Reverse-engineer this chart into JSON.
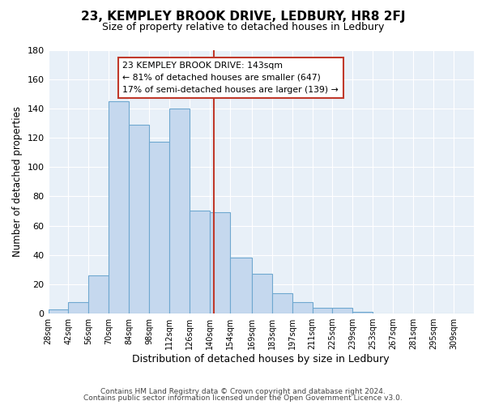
{
  "title": "23, KEMPLEY BROOK DRIVE, LEDBURY, HR8 2FJ",
  "subtitle": "Size of property relative to detached houses in Ledbury",
  "xlabel": "Distribution of detached houses by size in Ledbury",
  "ylabel": "Number of detached properties",
  "bar_labels": [
    "28sqm",
    "42sqm",
    "56sqm",
    "70sqm",
    "84sqm",
    "98sqm",
    "112sqm",
    "126sqm",
    "140sqm",
    "154sqm",
    "169sqm",
    "183sqm",
    "197sqm",
    "211sqm",
    "225sqm",
    "239sqm",
    "253sqm",
    "267sqm",
    "281sqm",
    "295sqm",
    "309sqm"
  ],
  "bar_heights": [
    3,
    8,
    26,
    145,
    129,
    117,
    140,
    70,
    69,
    38,
    27,
    14,
    8,
    4,
    4,
    1,
    0,
    0,
    0,
    0,
    0
  ],
  "bar_color": "#c5d8ee",
  "bar_edge_color": "#6fa8d0",
  "property_line_x": 143,
  "property_line_color": "#c0392b",
  "annotation_title": "23 KEMPLEY BROOK DRIVE: 143sqm",
  "annotation_line1": "← 81% of detached houses are smaller (647)",
  "annotation_line2": "17% of semi-detached houses are larger (139) →",
  "annotation_box_color": "#ffffff",
  "annotation_box_edge_color": "#c0392b",
  "ylim": [
    0,
    180
  ],
  "yticks": [
    0,
    20,
    40,
    60,
    80,
    100,
    120,
    140,
    160,
    180
  ],
  "footer1": "Contains HM Land Registry data © Crown copyright and database right 2024.",
  "footer2": "Contains public sector information licensed under the Open Government Licence v3.0.",
  "bin_edges": [
    28,
    42,
    56,
    70,
    84,
    98,
    112,
    126,
    140,
    154,
    169,
    183,
    197,
    211,
    225,
    239,
    253,
    267,
    281,
    295,
    309,
    323
  ],
  "plot_bg_color": "#e8f0f8",
  "grid_color": "#ffffff",
  "title_fontsize": 11,
  "subtitle_fontsize": 9
}
